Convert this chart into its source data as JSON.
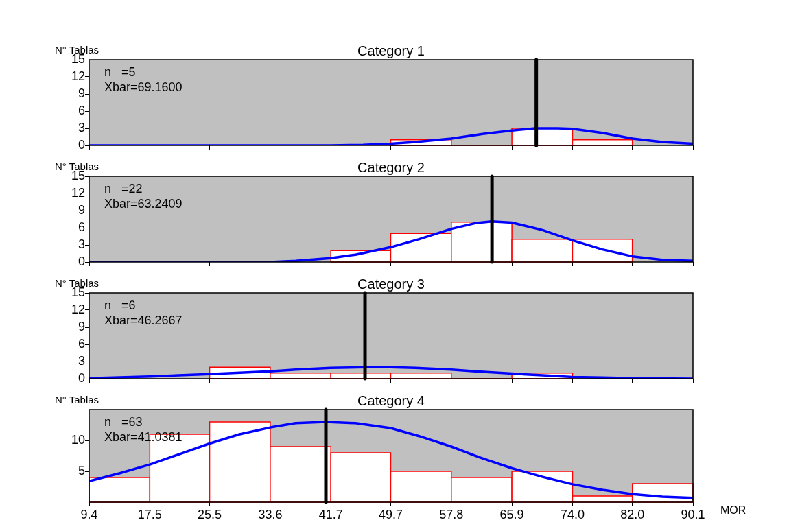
{
  "chart_data": [
    {
      "type": "histogram",
      "title": "Category 1",
      "ylabel": "N° Tablas",
      "bins": [
        49.7,
        57.8,
        65.9,
        74.0,
        82.0
      ],
      "values": [
        1,
        0,
        3,
        1
      ],
      "color": "#ff0000",
      "series": [
        {
          "type": "line",
          "color": "#0000ff",
          "x": [
            9.4,
            41.7,
            46,
            49.7,
            53,
            57.8,
            62,
            65.9,
            69,
            72,
            74,
            78,
            82,
            86,
            90.1
          ],
          "values": [
            0,
            0,
            0.1,
            0.3,
            0.6,
            1.2,
            2.0,
            2.6,
            3.0,
            3.0,
            2.9,
            2.2,
            1.2,
            0.6,
            0.3
          ]
        }
      ],
      "ref_lines": [
        {
          "axis": "x",
          "value": 69.16,
          "color": "#000000"
        }
      ],
      "annotations": [
        "n   =5",
        "Xbar=69.1600"
      ],
      "xlim": [
        9.4,
        90.1
      ],
      "xticks": [
        9.4,
        17.5,
        25.5,
        33.6,
        41.7,
        49.7,
        57.8,
        65.9,
        74,
        82,
        90.1
      ],
      "ylim": [
        0,
        15
      ],
      "yticks": [
        0,
        3,
        6,
        9,
        12,
        15
      ],
      "tick_labels": "y"
    },
    {
      "type": "histogram",
      "title": "Category 2",
      "ylabel": "N° Tablas",
      "bins": [
        41.7,
        49.7,
        57.8,
        65.9,
        74.0,
        82.0
      ],
      "values": [
        2,
        5,
        7,
        4,
        4
      ],
      "color": "#ff0000",
      "series": [
        {
          "type": "line",
          "color": "#0000ff",
          "x": [
            9.4,
            33.6,
            37,
            41.7,
            45,
            49.7,
            53.5,
            57.8,
            61,
            63.2,
            65.9,
            70,
            74,
            78,
            82,
            86,
            90.1
          ],
          "values": [
            0,
            0,
            0.2,
            0.7,
            1.3,
            2.6,
            4.0,
            5.8,
            6.8,
            7.1,
            6.9,
            5.6,
            3.8,
            2.2,
            1.0,
            0.4,
            0.2
          ]
        }
      ],
      "ref_lines": [
        {
          "axis": "x",
          "value": 63.2409,
          "color": "#000000"
        }
      ],
      "annotations": [
        "n   =22",
        "Xbar=63.2409"
      ],
      "xlim": [
        9.4,
        90.1
      ],
      "xticks": [
        9.4,
        17.5,
        25.5,
        33.6,
        41.7,
        49.7,
        57.8,
        65.9,
        74,
        82,
        90.1
      ],
      "ylim": [
        0,
        15
      ],
      "yticks": [
        0,
        3,
        6,
        9,
        12,
        15
      ],
      "tick_labels": "y"
    },
    {
      "type": "histogram",
      "title": "Category 3",
      "ylabel": "N° Tablas",
      "bins": [
        25.5,
        33.6,
        41.7,
        49.7,
        57.8,
        65.9,
        74.0
      ],
      "values": [
        2,
        1,
        1,
        1,
        0,
        1
      ],
      "color": "#ff0000",
      "series": [
        {
          "type": "line",
          "color": "#0000ff",
          "x": [
            9.4,
            17.5,
            25.5,
            33.6,
            37,
            41.7,
            46.3,
            49.7,
            53,
            57.8,
            61,
            65.9,
            70,
            74,
            78,
            82,
            90.1
          ],
          "values": [
            0.1,
            0.4,
            0.8,
            1.3,
            1.6,
            1.9,
            2.0,
            2.0,
            1.9,
            1.6,
            1.3,
            0.9,
            0.6,
            0.3,
            0.2,
            0.1,
            0
          ]
        }
      ],
      "ref_lines": [
        {
          "axis": "x",
          "value": 46.2667,
          "color": "#000000"
        }
      ],
      "annotations": [
        "n   =6",
        "Xbar=46.2667"
      ],
      "xlim": [
        9.4,
        90.1
      ],
      "xticks": [
        9.4,
        17.5,
        25.5,
        33.6,
        41.7,
        49.7,
        57.8,
        65.9,
        74,
        82,
        90.1
      ],
      "ylim": [
        0,
        15
      ],
      "yticks": [
        0,
        3,
        6,
        9,
        12,
        15
      ],
      "tick_labels": "y"
    },
    {
      "type": "histogram",
      "title": "Category 4",
      "ylabel": "N° Tablas",
      "xlabel": "MOR",
      "bins": [
        9.4,
        17.5,
        25.5,
        33.6,
        41.7,
        49.7,
        57.8,
        65.9,
        74.0,
        82.0,
        90.1
      ],
      "values": [
        4,
        11,
        13,
        9,
        8,
        5,
        4,
        5,
        1,
        3
      ],
      "color": "#ff0000",
      "series": [
        {
          "type": "line",
          "color": "#0000ff",
          "x": [
            9.4,
            13.5,
            17.5,
            21.5,
            25.5,
            29.5,
            33.6,
            37,
            41,
            45,
            49.7,
            53.5,
            57.8,
            61.5,
            65.9,
            70,
            74,
            78,
            82,
            86,
            90.1
          ],
          "values": [
            3.4,
            4.7,
            6.1,
            7.8,
            9.5,
            11.0,
            12.1,
            12.8,
            13.0,
            12.8,
            12.0,
            10.7,
            9.0,
            7.3,
            5.5,
            4.1,
            2.9,
            2.0,
            1.3,
            0.9,
            0.7
          ]
        }
      ],
      "ref_lines": [
        {
          "axis": "x",
          "value": 41.0381,
          "color": "#000000"
        }
      ],
      "annotations": [
        "n   =63",
        "Xbar=41.0381"
      ],
      "xlim": [
        9.4,
        90.1
      ],
      "xticks": [
        9.4,
        17.5,
        25.5,
        33.6,
        41.7,
        49.7,
        57.8,
        {
          "value": 65.9,
          "label": "65.9"
        },
        {
          "value": 74,
          "label": "74.0"
        },
        {
          "value": 82,
          "label": "82.0"
        },
        90.1
      ],
      "ylim": [
        0,
        15
      ],
      "yticks": [
        5,
        10
      ]
    }
  ]
}
